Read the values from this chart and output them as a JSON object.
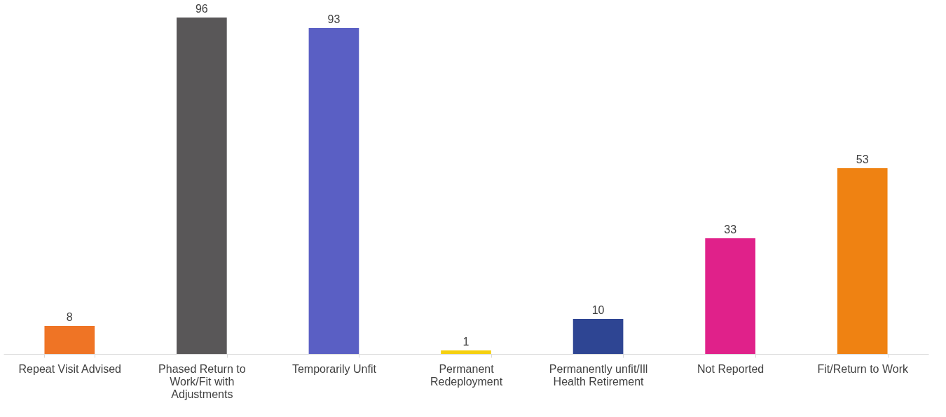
{
  "chart_data": {
    "type": "bar",
    "categories": [
      "Repeat Visit Advised",
      "Phased Return to Work/Fit with Adjustments",
      "Temporarily Unfit",
      "Permanent Redeployment",
      "Permanently unfit/Ill Health Retirement",
      "Not Reported",
      "Fit/Return to Work"
    ],
    "values": [
      8,
      96,
      93,
      1,
      10,
      33,
      53
    ],
    "colors": [
      "#ef7425",
      "#595758",
      "#5a5fc4",
      "#f5d00f",
      "#2e4593",
      "#e0218a",
      "#ef8212"
    ],
    "data_labels": true,
    "grid": false
  }
}
